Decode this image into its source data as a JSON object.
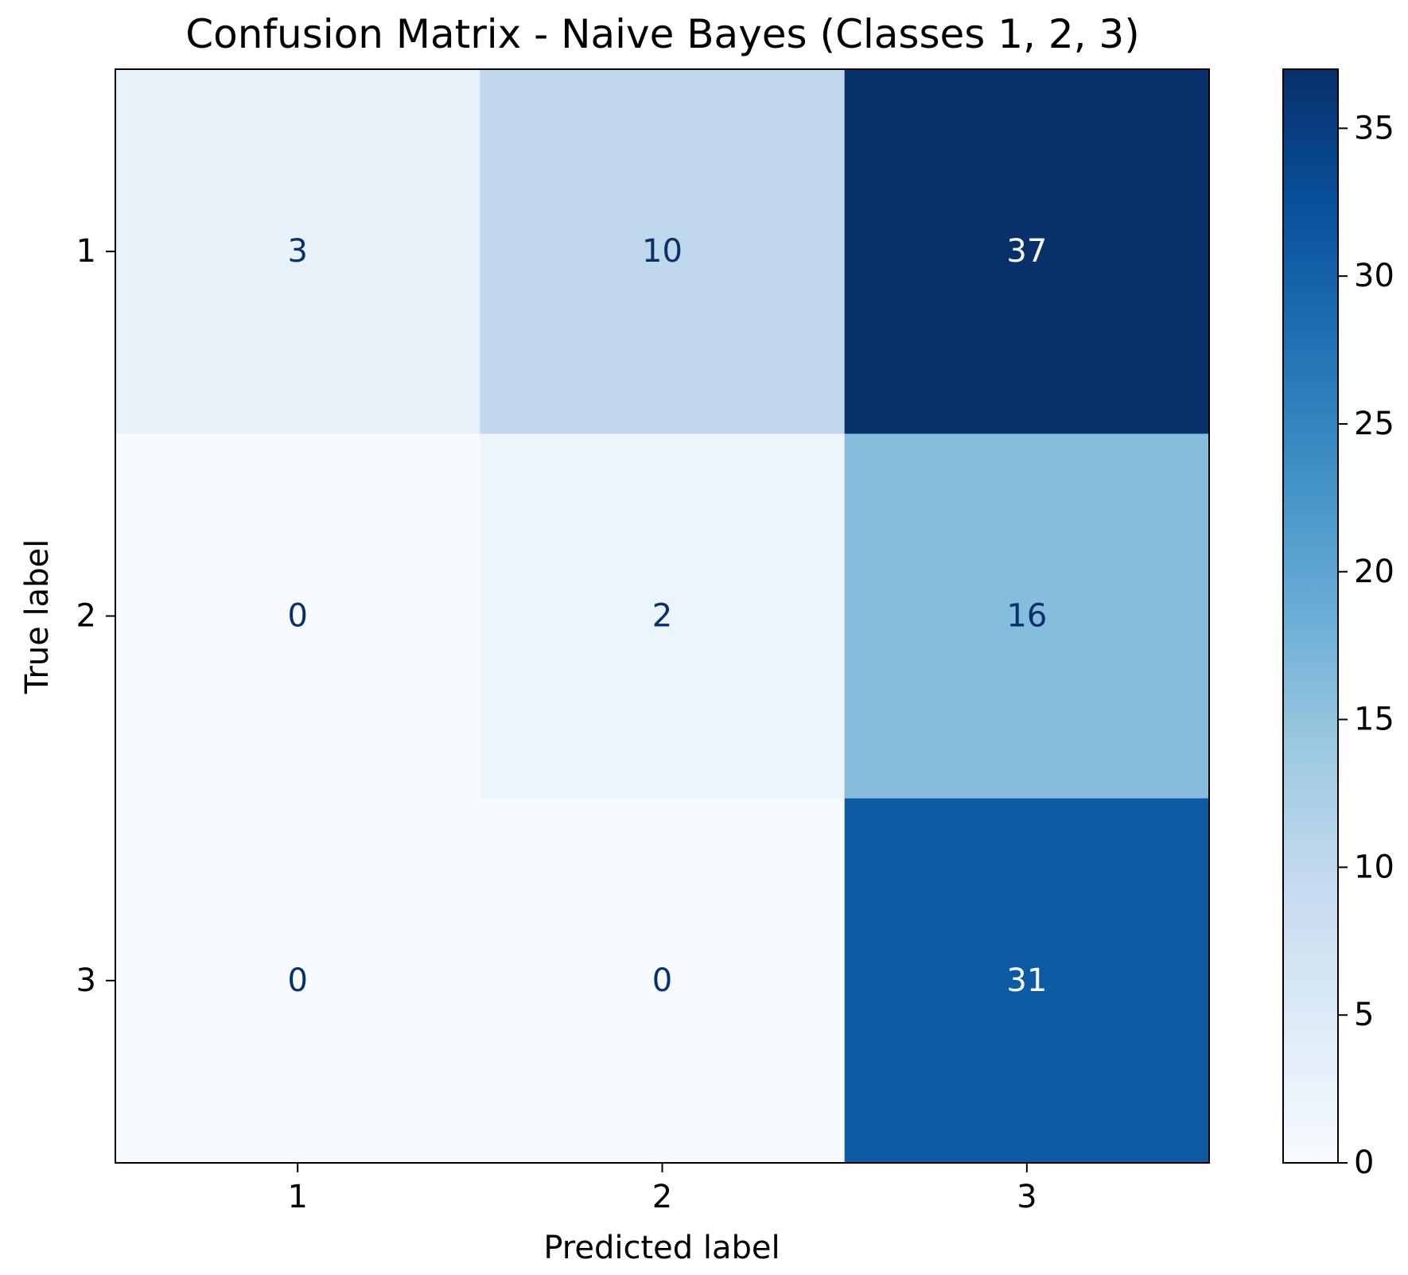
{
  "chart_data": {
    "type": "heatmap",
    "title": "Confusion Matrix - Naive Bayes (Classes 1, 2, 3)",
    "xlabel": "Predicted label",
    "ylabel": "True label",
    "x_categories": [
      "1",
      "2",
      "3"
    ],
    "y_categories": [
      "1",
      "2",
      "3"
    ],
    "values": [
      [
        3,
        10,
        37
      ],
      [
        0,
        2,
        16
      ],
      [
        0,
        0,
        31
      ]
    ],
    "colormap": "Blues",
    "colorbar": {
      "range": [
        0,
        37
      ],
      "ticks": [
        0,
        5,
        10,
        15,
        20,
        25,
        30,
        35
      ],
      "tick_labels": [
        "0",
        "5",
        "10",
        "15",
        "20",
        "25",
        "30",
        "35"
      ]
    },
    "grid": false,
    "colors": {
      "low_text": "#08306b",
      "high_text": "#f7fbff"
    }
  }
}
